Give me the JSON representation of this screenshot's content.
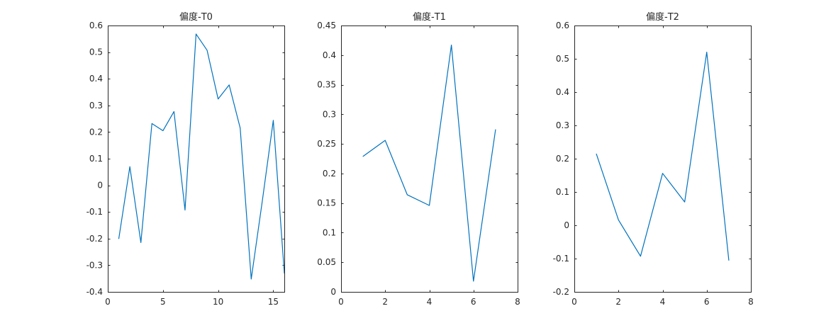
{
  "chart_data": [
    {
      "type": "line",
      "title": "偏度-T0",
      "xlabel": "",
      "ylabel": "",
      "xlim": [
        0,
        16
      ],
      "ylim": [
        -0.4,
        0.6
      ],
      "xticks": [
        0,
        5,
        10,
        15
      ],
      "yticks": [
        -0.4,
        -0.3,
        -0.2,
        -0.1,
        0,
        0.1,
        0.2,
        0.3,
        0.4,
        0.5,
        0.6
      ],
      "grid": false,
      "series": [
        {
          "x": [
            1,
            2,
            3,
            4,
            5,
            6,
            7,
            8,
            9,
            10,
            11,
            12,
            13,
            14,
            15,
            16
          ],
          "values": [
            -0.2,
            0.07,
            -0.215,
            0.232,
            0.205,
            0.277,
            -0.093,
            0.568,
            0.507,
            0.324,
            0.377,
            0.215,
            -0.352,
            -0.06,
            0.244,
            -0.33
          ],
          "color": "#0072BD"
        }
      ]
    },
    {
      "type": "line",
      "title": "偏度-T1",
      "xlabel": "",
      "ylabel": "",
      "xlim": [
        0,
        8
      ],
      "ylim": [
        0,
        0.45
      ],
      "xticks": [
        0,
        2,
        4,
        6,
        8
      ],
      "yticks": [
        0,
        0.05,
        0.1,
        0.15,
        0.2,
        0.25,
        0.3,
        0.35,
        0.4,
        0.45
      ],
      "grid": false,
      "series": [
        {
          "x": [
            1,
            2,
            3,
            4,
            5,
            6,
            7
          ],
          "values": [
            0.229,
            0.256,
            0.164,
            0.146,
            0.417,
            0.018,
            0.274
          ],
          "color": "#0072BD"
        }
      ]
    },
    {
      "type": "line",
      "title": "偏度-T2",
      "xlabel": "",
      "ylabel": "",
      "xlim": [
        0,
        8
      ],
      "ylim": [
        -0.2,
        0.6
      ],
      "xticks": [
        0,
        2,
        4,
        6,
        8
      ],
      "yticks": [
        -0.2,
        -0.1,
        0,
        0.1,
        0.2,
        0.3,
        0.4,
        0.5,
        0.6
      ],
      "grid": false,
      "series": [
        {
          "x": [
            1,
            2,
            3,
            4,
            5,
            6,
            7
          ],
          "values": [
            0.214,
            0.016,
            -0.093,
            0.156,
            0.07,
            0.52,
            -0.105
          ],
          "color": "#0072BD"
        }
      ]
    }
  ]
}
